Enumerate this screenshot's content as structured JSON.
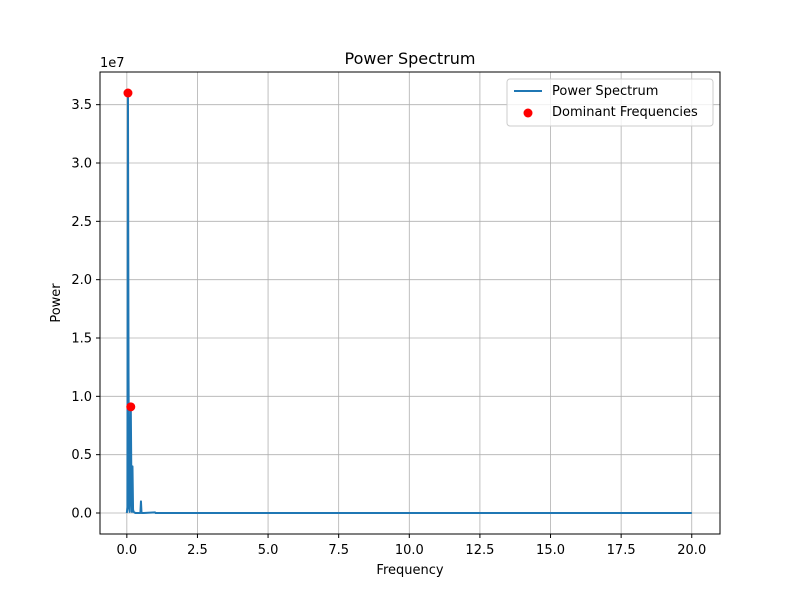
{
  "chart_data": {
    "type": "line",
    "title": "Power Spectrum",
    "xlabel": "Frequency",
    "ylabel": "Power",
    "xlim": [
      -0.95,
      21.0
    ],
    "ylim": [
      -1800000,
      37800000
    ],
    "y_multiplier_label": "1e7",
    "y_scale_factor": 10000000,
    "x_ticks": [
      0.0,
      2.5,
      5.0,
      7.5,
      10.0,
      12.5,
      15.0,
      17.5,
      20.0
    ],
    "x_tick_labels": [
      "0.0",
      "2.5",
      "5.0",
      "7.5",
      "10.0",
      "12.5",
      "15.0",
      "17.5",
      "20.0"
    ],
    "y_ticks": [
      0,
      5000000,
      10000000,
      15000000,
      20000000,
      25000000,
      30000000,
      35000000
    ],
    "y_tick_labels": [
      "0.0",
      "0.5",
      "1.0",
      "1.5",
      "2.0",
      "2.5",
      "3.0",
      "3.5"
    ],
    "grid": true,
    "legend_position": "top-right",
    "series": [
      {
        "name": "Power Spectrum",
        "kind": "line",
        "color": "#1f77b4",
        "points": [
          [
            0.0,
            0
          ],
          [
            0.02,
            500000
          ],
          [
            0.04,
            36000000
          ],
          [
            0.06,
            12000000
          ],
          [
            0.08,
            500000
          ],
          [
            0.1,
            100000
          ],
          [
            0.12,
            2000000
          ],
          [
            0.14,
            9100000
          ],
          [
            0.16,
            3000000
          ],
          [
            0.18,
            100000
          ],
          [
            0.2,
            4000000
          ],
          [
            0.22,
            300000
          ],
          [
            0.24,
            100000
          ],
          [
            0.3,
            0
          ],
          [
            0.4,
            0
          ],
          [
            0.48,
            0
          ],
          [
            0.5,
            1000000
          ],
          [
            0.52,
            0
          ],
          [
            0.6,
            0
          ],
          [
            1.0,
            50000
          ],
          [
            1.02,
            0
          ],
          [
            2.0,
            0
          ],
          [
            5.0,
            0
          ],
          [
            10.0,
            0
          ],
          [
            15.0,
            0
          ],
          [
            20.0,
            0
          ]
        ]
      },
      {
        "name": "Dominant Frequencies",
        "kind": "scatter",
        "color": "#ff0000",
        "points": [
          [
            0.04,
            36000000
          ],
          [
            0.14,
            9100000
          ]
        ]
      }
    ]
  }
}
